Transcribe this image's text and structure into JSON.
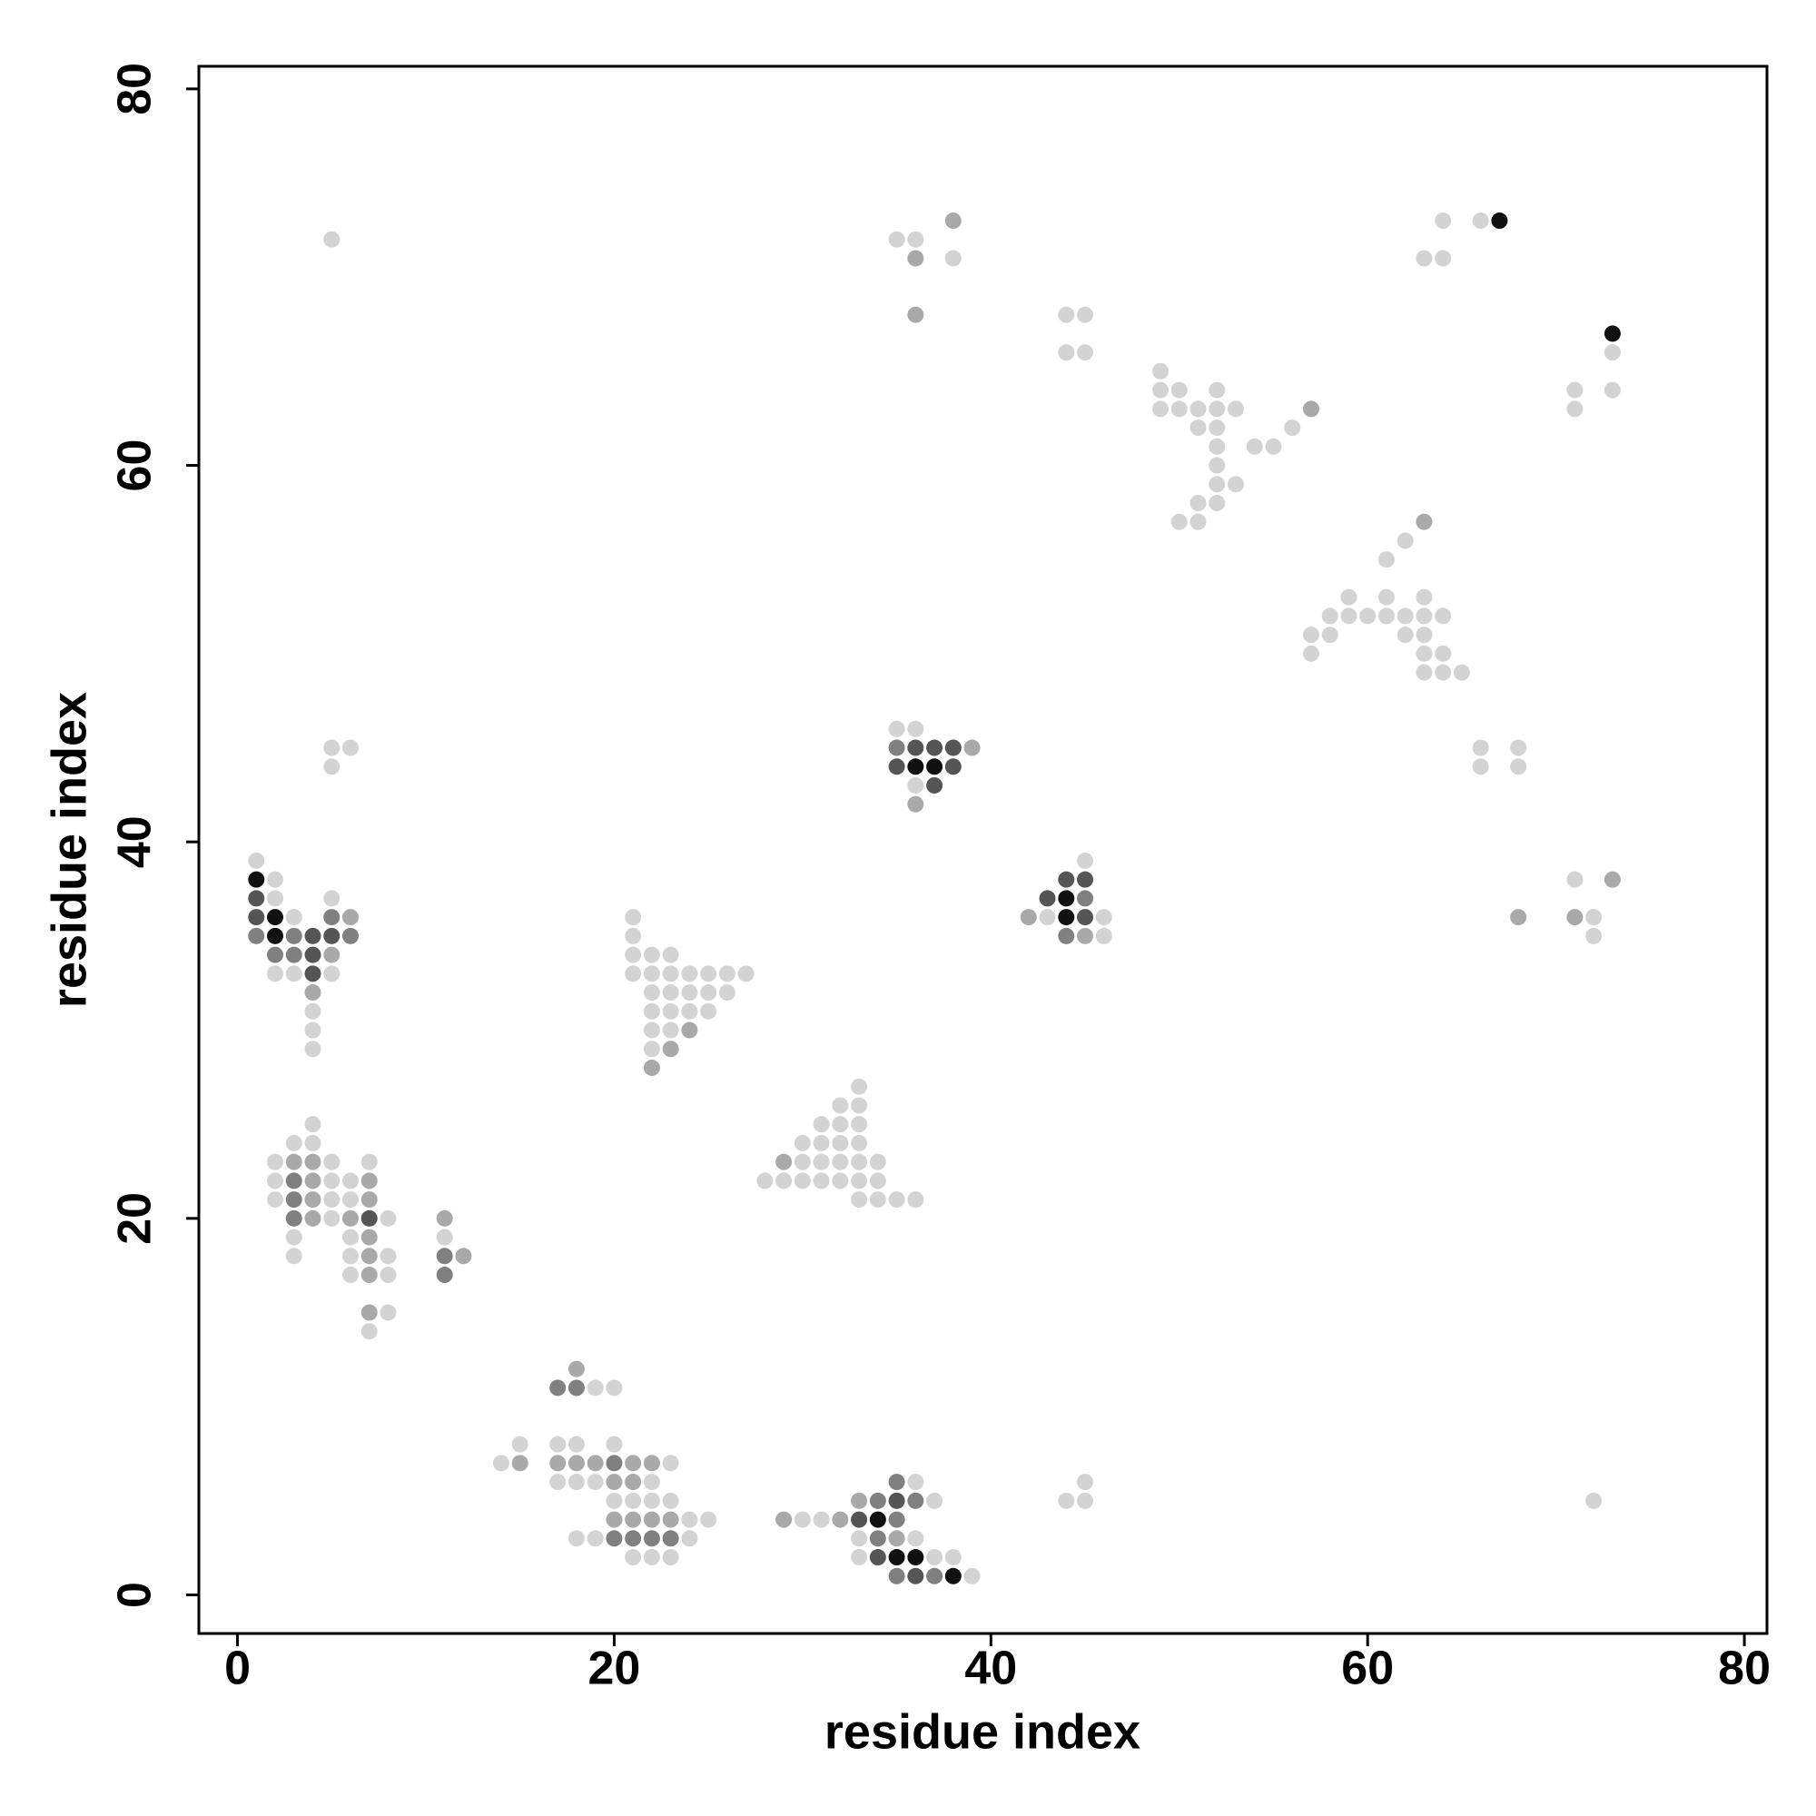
{
  "chart_data": {
    "type": "scatter",
    "xlabel": "residue index",
    "ylabel": "residue index",
    "xlim": [
      -2.05,
      81.2
    ],
    "ylim": [
      -2.05,
      81.2
    ],
    "xticks": [
      0,
      20,
      40,
      60,
      80
    ],
    "yticks": [
      0,
      20,
      40,
      60,
      80
    ],
    "series": [
      {
        "color": "#d3d3d3",
        "x": [
          5,
          35,
          36,
          38,
          44,
          45,
          44,
          45,
          64,
          66,
          63,
          64,
          73,
          73,
          71,
          71,
          49,
          49,
          50,
          49,
          50,
          51,
          52,
          52,
          53,
          51,
          52,
          52,
          54,
          52,
          52,
          53,
          51,
          52,
          50,
          51,
          55,
          56,
          62,
          61,
          59,
          61,
          63,
          58,
          59,
          60,
          61,
          62,
          63,
          64,
          57,
          58,
          62,
          63,
          57,
          63,
          64,
          63,
          64,
          65,
          66,
          68,
          66,
          68,
          71,
          72,
          72,
          72,
          44,
          45,
          45,
          35,
          36,
          36,
          45,
          43,
          46,
          46,
          21,
          21,
          21,
          22,
          23,
          21,
          22,
          23,
          24,
          25,
          26,
          27,
          22,
          23,
          24,
          25,
          26,
          22,
          23,
          24,
          25,
          22,
          23,
          22,
          33,
          32,
          33,
          31,
          32,
          33,
          30,
          31,
          32,
          33,
          30,
          31,
          32,
          33,
          34,
          28,
          29,
          30,
          31,
          32,
          33,
          34,
          33,
          34,
          35,
          36,
          1,
          2,
          2,
          5,
          3,
          2,
          3,
          5,
          4,
          4,
          4,
          5,
          6,
          5,
          4,
          3,
          4,
          2,
          5,
          7,
          2,
          5,
          6,
          2,
          5,
          6,
          5,
          8,
          3,
          6,
          3,
          6,
          8,
          6,
          8,
          8,
          7,
          11,
          19,
          20,
          15,
          17,
          18,
          20,
          14,
          23,
          17,
          18,
          19,
          22,
          20,
          21,
          22,
          23,
          24,
          25,
          18,
          19,
          24,
          21,
          22,
          23,
          36,
          37,
          30,
          31,
          33,
          36,
          33,
          37,
          38,
          39
        ],
        "values": [
          72,
          72,
          72,
          71,
          68,
          68,
          66,
          66,
          73,
          73,
          71,
          71,
          66,
          64,
          64,
          63,
          65,
          64,
          64,
          63,
          63,
          63,
          64,
          63,
          63,
          62,
          62,
          61,
          61,
          60,
          59,
          59,
          58,
          58,
          57,
          57,
          61,
          62,
          56,
          55,
          53,
          53,
          53,
          52,
          52,
          52,
          52,
          52,
          52,
          52,
          51,
          51,
          51,
          51,
          50,
          50,
          50,
          49,
          49,
          49,
          45,
          45,
          44,
          44,
          38,
          36,
          35,
          5,
          5,
          5,
          6,
          46,
          46,
          43,
          39,
          36,
          36,
          35,
          36,
          35,
          34,
          34,
          34,
          33,
          33,
          33,
          33,
          33,
          33,
          33,
          32,
          32,
          32,
          32,
          32,
          31,
          31,
          31,
          31,
          30,
          30,
          29,
          27,
          26,
          26,
          25,
          25,
          25,
          24,
          24,
          24,
          24,
          23,
          23,
          23,
          23,
          23,
          22,
          22,
          22,
          22,
          22,
          22,
          22,
          21,
          21,
          21,
          21,
          39,
          38,
          37,
          37,
          36,
          33,
          33,
          33,
          31,
          30,
          29,
          45,
          45,
          44,
          25,
          24,
          24,
          23,
          23,
          23,
          22,
          22,
          22,
          21,
          21,
          21,
          20,
          20,
          19,
          19,
          18,
          18,
          18,
          17,
          17,
          15,
          14,
          19,
          11,
          11,
          8,
          8,
          8,
          8,
          7,
          7,
          6,
          6,
          6,
          6,
          5,
          5,
          5,
          5,
          4,
          4,
          3,
          3,
          3,
          2,
          2,
          2,
          6,
          5,
          4,
          4,
          3,
          3,
          2,
          2,
          2,
          1
        ]
      },
      {
        "color": "#a9a9a9",
        "x": [
          36,
          38,
          36,
          57,
          63,
          73,
          68,
          71,
          39,
          36,
          42,
          45,
          24,
          23,
          22,
          29,
          6,
          5,
          4,
          3,
          4,
          4,
          7,
          4,
          7,
          4,
          6,
          7,
          7,
          7,
          7,
          11,
          12,
          18,
          15,
          17,
          18,
          19,
          21,
          22,
          20,
          21,
          20,
          21,
          22,
          23,
          33,
          29,
          32,
          35
        ],
        "values": [
          71,
          73,
          68,
          63,
          57,
          38,
          36,
          36,
          45,
          42,
          36,
          35,
          30,
          29,
          28,
          23,
          36,
          34,
          32,
          23,
          23,
          22,
          22,
          21,
          21,
          20,
          20,
          19,
          18,
          17,
          15,
          20,
          18,
          12,
          7,
          7,
          7,
          7,
          7,
          7,
          6,
          6,
          4,
          4,
          4,
          4,
          5,
          4,
          4,
          3
        ]
      },
      {
        "color": "#808080",
        "x": [
          35,
          45,
          44,
          5,
          1,
          3,
          6,
          2,
          3,
          3,
          3,
          3,
          11,
          11,
          17,
          18,
          20,
          20,
          21,
          22,
          23,
          35,
          34,
          36,
          35,
          34,
          35,
          37
        ],
        "values": [
          45,
          37,
          35,
          36,
          35,
          35,
          35,
          34,
          34,
          22,
          21,
          20,
          18,
          17,
          11,
          11,
          7,
          3,
          3,
          3,
          3,
          6,
          5,
          5,
          4,
          3,
          1,
          1
        ]
      },
      {
        "color": "#555555",
        "x": [
          36,
          37,
          38,
          35,
          38,
          37,
          44,
          45,
          43,
          45,
          1,
          1,
          4,
          5,
          4,
          4,
          7,
          35,
          33,
          34,
          36
        ],
        "values": [
          45,
          45,
          45,
          44,
          44,
          43,
          38,
          38,
          37,
          36,
          37,
          36,
          35,
          35,
          34,
          33,
          20,
          5,
          4,
          2,
          1
        ]
      },
      {
        "color": "#111111",
        "x": [
          67,
          73,
          36,
          37,
          44,
          44,
          1,
          2,
          2,
          34,
          35,
          36,
          38
        ],
        "values": [
          73,
          67,
          44,
          44,
          37,
          36,
          38,
          36,
          35,
          4,
          2,
          2,
          1
        ]
      }
    ]
  }
}
